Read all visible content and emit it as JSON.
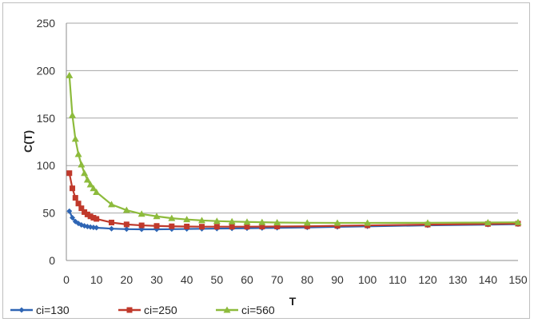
{
  "chart_data": {
    "type": "line",
    "title": "",
    "xlabel": "T",
    "ylabel": "C(T)",
    "xlim": [
      0,
      150
    ],
    "ylim": [
      0,
      250
    ],
    "x_ticks": [
      0,
      10,
      20,
      30,
      40,
      50,
      60,
      70,
      80,
      90,
      100,
      110,
      120,
      130,
      140,
      150
    ],
    "y_ticks": [
      0,
      50,
      100,
      150,
      200,
      250
    ],
    "grid": "horizontal",
    "legend_position": "bottom-left",
    "series": [
      {
        "name": "ci=130",
        "color": "#2e65b4",
        "marker": "diamond",
        "points": [
          [
            1,
            52
          ],
          [
            2,
            45
          ],
          [
            3,
            41
          ],
          [
            4,
            39
          ],
          [
            5,
            37.5
          ],
          [
            6,
            36.5
          ],
          [
            7,
            35.8
          ],
          [
            8,
            35.2
          ],
          [
            9,
            34.8
          ],
          [
            10,
            34.5
          ],
          [
            15,
            33.5
          ],
          [
            20,
            33
          ],
          [
            25,
            32.8
          ],
          [
            30,
            32.8
          ],
          [
            35,
            33
          ],
          [
            40,
            33.2
          ],
          [
            45,
            33.4
          ],
          [
            50,
            33.6
          ],
          [
            55,
            33.8
          ],
          [
            60,
            34
          ],
          [
            65,
            34.2
          ],
          [
            70,
            34.4
          ],
          [
            80,
            34.8
          ],
          [
            90,
            35.4
          ],
          [
            100,
            36
          ],
          [
            120,
            37
          ],
          [
            140,
            37.8
          ],
          [
            150,
            38.2
          ]
        ]
      },
      {
        "name": "ci=250",
        "color": "#c0392b",
        "marker": "square",
        "points": [
          [
            1,
            92
          ],
          [
            2,
            76
          ],
          [
            3,
            66
          ],
          [
            4,
            60
          ],
          [
            5,
            55
          ],
          [
            6,
            51
          ],
          [
            7,
            48.5
          ],
          [
            8,
            46.5
          ],
          [
            9,
            45
          ],
          [
            10,
            43.8
          ],
          [
            15,
            40
          ],
          [
            20,
            38
          ],
          [
            25,
            37
          ],
          [
            30,
            36.4
          ],
          [
            35,
            36
          ],
          [
            40,
            35.8
          ],
          [
            45,
            35.6
          ],
          [
            50,
            35.6
          ],
          [
            55,
            35.6
          ],
          [
            60,
            35.6
          ],
          [
            65,
            35.7
          ],
          [
            70,
            35.8
          ],
          [
            80,
            36
          ],
          [
            90,
            36.5
          ],
          [
            100,
            37
          ],
          [
            120,
            37.8
          ],
          [
            140,
            38.5
          ],
          [
            150,
            38.8
          ]
        ]
      },
      {
        "name": "ci=560",
        "color": "#8dbb3c",
        "marker": "triangle",
        "points": [
          [
            1,
            195
          ],
          [
            2,
            153
          ],
          [
            3,
            128
          ],
          [
            4,
            112
          ],
          [
            5,
            101
          ],
          [
            6,
            92
          ],
          [
            7,
            85
          ],
          [
            8,
            80
          ],
          [
            9,
            76
          ],
          [
            10,
            72
          ],
          [
            15,
            59
          ],
          [
            20,
            53
          ],
          [
            25,
            49
          ],
          [
            30,
            46.5
          ],
          [
            35,
            44.5
          ],
          [
            40,
            43.2
          ],
          [
            45,
            42.2
          ],
          [
            50,
            41.5
          ],
          [
            55,
            41
          ],
          [
            60,
            40.6
          ],
          [
            65,
            40.3
          ],
          [
            70,
            40
          ],
          [
            80,
            39.7
          ],
          [
            90,
            39.6
          ],
          [
            100,
            39.6
          ],
          [
            120,
            39.7
          ],
          [
            140,
            40
          ],
          [
            150,
            40.2
          ]
        ]
      }
    ]
  }
}
